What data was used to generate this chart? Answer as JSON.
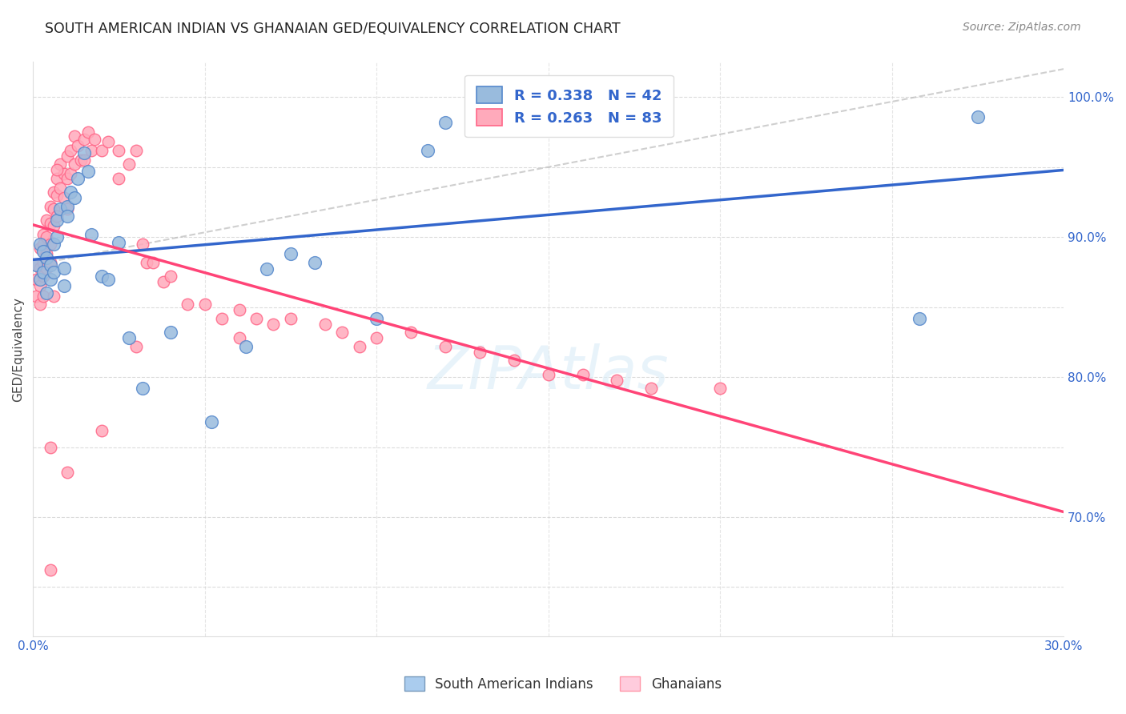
{
  "title": "SOUTH AMERICAN INDIAN VS GHANAIAN GED/EQUIVALENCY CORRELATION CHART",
  "source": "Source: ZipAtlas.com",
  "ylabel": "GED/Equivalency",
  "xlim": [
    0.0,
    0.3
  ],
  "ylim": [
    0.615,
    1.025
  ],
  "blue_color": "#99BBDD",
  "pink_color": "#FFAABB",
  "blue_edge_color": "#5588CC",
  "pink_edge_color": "#FF6688",
  "blue_line_color": "#3366CC",
  "pink_line_color": "#FF4477",
  "axis_color": "#3366CC",
  "text_color": "#3366CC",
  "grid_color": "#CCCCCC",
  "label1": "South American Indians",
  "label2": "Ghanaians",
  "R1": "0.338",
  "N1": "42",
  "R2": "0.263",
  "N2": "83",
  "blue_x": [
    0.001,
    0.002,
    0.002,
    0.003,
    0.003,
    0.004,
    0.004,
    0.005,
    0.005,
    0.006,
    0.006,
    0.007,
    0.007,
    0.008,
    0.009,
    0.009,
    0.01,
    0.01,
    0.011,
    0.012,
    0.013,
    0.015,
    0.016,
    0.017,
    0.02,
    0.022,
    0.025,
    0.028,
    0.032,
    0.04,
    0.052,
    0.062,
    0.068,
    0.075,
    0.082,
    0.1,
    0.115,
    0.12,
    0.145,
    0.165,
    0.258,
    0.275
  ],
  "blue_y": [
    0.88,
    0.895,
    0.87,
    0.89,
    0.875,
    0.885,
    0.86,
    0.88,
    0.87,
    0.895,
    0.875,
    0.9,
    0.912,
    0.92,
    0.878,
    0.865,
    0.922,
    0.915,
    0.932,
    0.928,
    0.942,
    0.96,
    0.947,
    0.902,
    0.872,
    0.87,
    0.896,
    0.828,
    0.792,
    0.832,
    0.768,
    0.822,
    0.877,
    0.888,
    0.882,
    0.842,
    0.962,
    0.982,
    0.991,
    0.99,
    0.842,
    0.986
  ],
  "pink_x": [
    0.001,
    0.001,
    0.001,
    0.002,
    0.002,
    0.002,
    0.002,
    0.003,
    0.003,
    0.003,
    0.003,
    0.003,
    0.004,
    0.004,
    0.004,
    0.004,
    0.005,
    0.005,
    0.005,
    0.005,
    0.006,
    0.006,
    0.006,
    0.007,
    0.007,
    0.007,
    0.008,
    0.008,
    0.009,
    0.009,
    0.01,
    0.01,
    0.01,
    0.011,
    0.011,
    0.012,
    0.012,
    0.013,
    0.014,
    0.015,
    0.015,
    0.016,
    0.017,
    0.018,
    0.02,
    0.022,
    0.025,
    0.025,
    0.028,
    0.03,
    0.032,
    0.033,
    0.035,
    0.038,
    0.04,
    0.045,
    0.05,
    0.055,
    0.06,
    0.065,
    0.07,
    0.075,
    0.085,
    0.09,
    0.095,
    0.1,
    0.11,
    0.12,
    0.13,
    0.14,
    0.15,
    0.16,
    0.17,
    0.18,
    0.2,
    0.03,
    0.06,
    0.02,
    0.01,
    0.005,
    0.005,
    0.006,
    0.007
  ],
  "pink_y": [
    0.88,
    0.87,
    0.858,
    0.892,
    0.878,
    0.865,
    0.852,
    0.902,
    0.895,
    0.882,
    0.872,
    0.858,
    0.912,
    0.9,
    0.888,
    0.878,
    0.922,
    0.91,
    0.895,
    0.882,
    0.932,
    0.92,
    0.908,
    0.942,
    0.93,
    0.915,
    0.952,
    0.935,
    0.945,
    0.928,
    0.958,
    0.942,
    0.92,
    0.962,
    0.945,
    0.972,
    0.952,
    0.965,
    0.955,
    0.97,
    0.955,
    0.975,
    0.962,
    0.97,
    0.962,
    0.968,
    0.962,
    0.942,
    0.952,
    0.962,
    0.895,
    0.882,
    0.882,
    0.868,
    0.872,
    0.852,
    0.852,
    0.842,
    0.848,
    0.842,
    0.838,
    0.842,
    0.838,
    0.832,
    0.822,
    0.828,
    0.832,
    0.822,
    0.818,
    0.812,
    0.802,
    0.802,
    0.798,
    0.792,
    0.792,
    0.822,
    0.828,
    0.762,
    0.732,
    0.75,
    0.662,
    0.858,
    0.948
  ]
}
